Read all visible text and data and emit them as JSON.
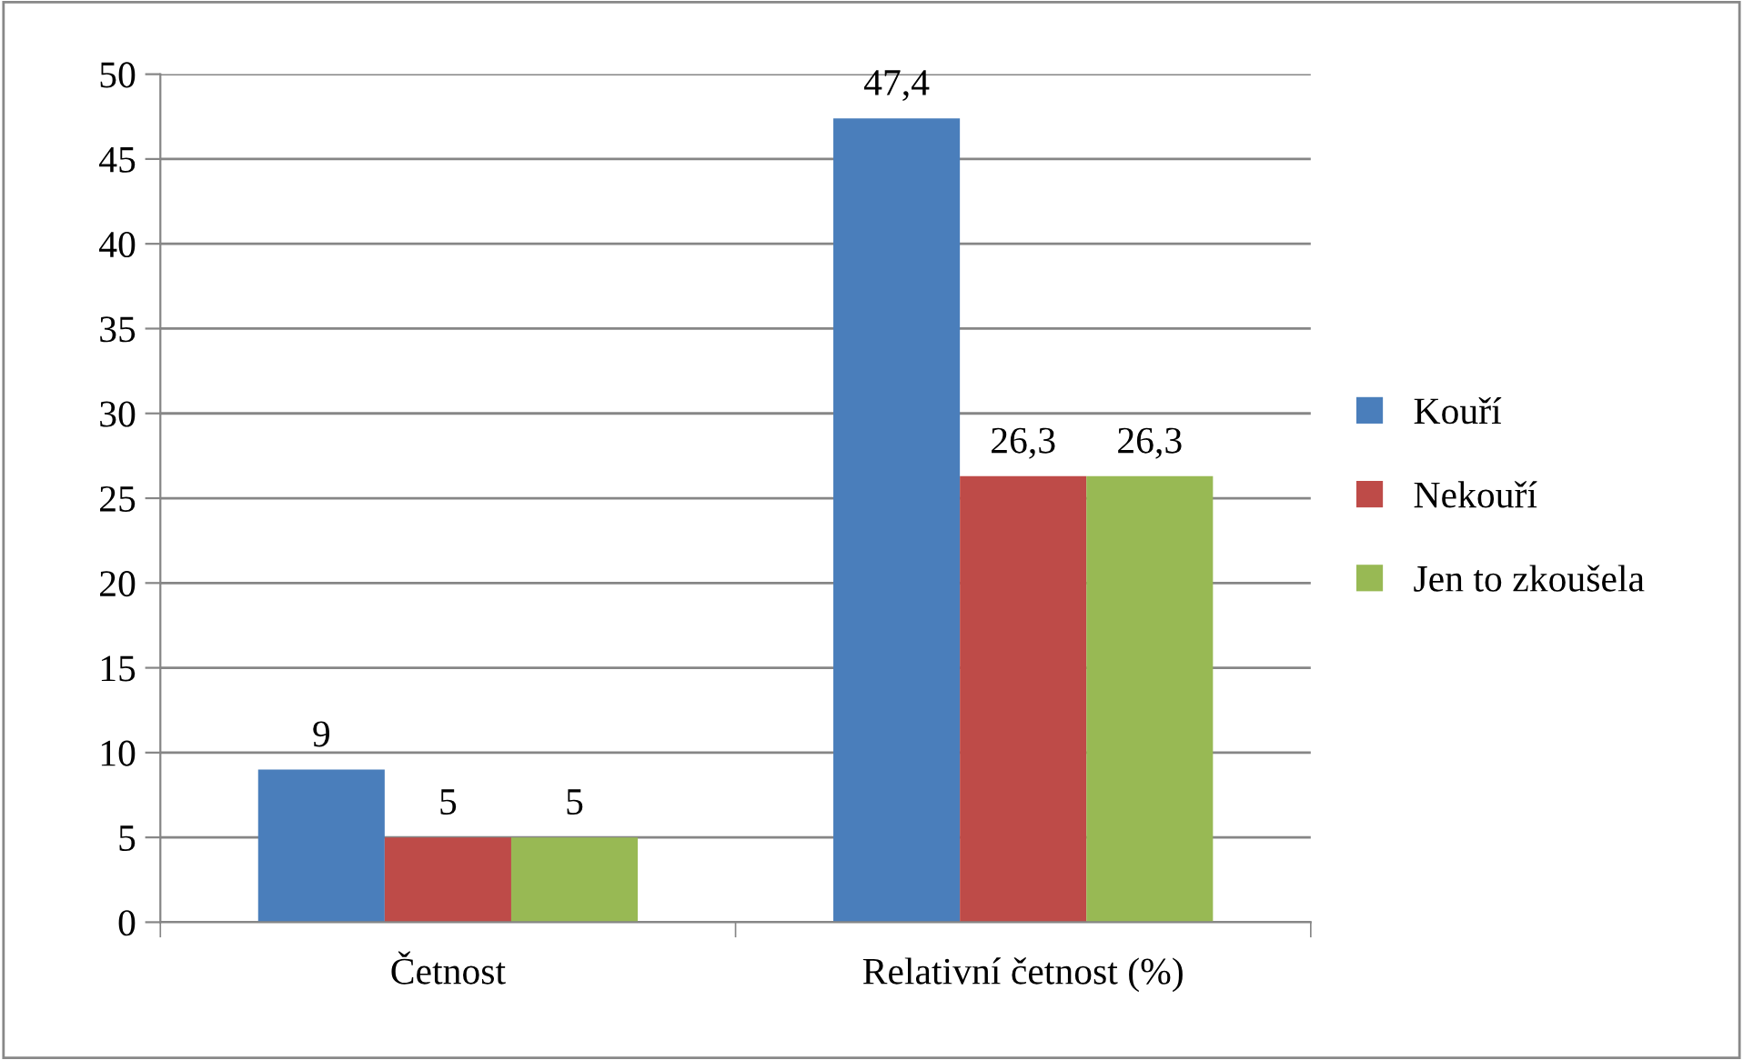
{
  "chart_data": {
    "type": "bar",
    "categories": [
      "Četnost",
      "Relativní četnost (%)"
    ],
    "series": [
      {
        "name": "Kouří",
        "color": "#4a7ebb",
        "values": [
          9,
          47.4
        ],
        "value_labels": [
          "9",
          "47,4"
        ]
      },
      {
        "name": "Nekouří",
        "color": "#be4b48",
        "values": [
          5,
          26.3
        ],
        "value_labels": [
          "5",
          "26,3"
        ]
      },
      {
        "name": "Jen to zkoušela",
        "color": "#98b954",
        "values": [
          5,
          26.3
        ],
        "value_labels": [
          "5",
          "26,3"
        ]
      }
    ],
    "ylim": [
      0,
      50
    ],
    "yticks": [
      0,
      5,
      10,
      15,
      20,
      25,
      30,
      35,
      40,
      45,
      50
    ],
    "grid": "y",
    "legend": "right"
  }
}
